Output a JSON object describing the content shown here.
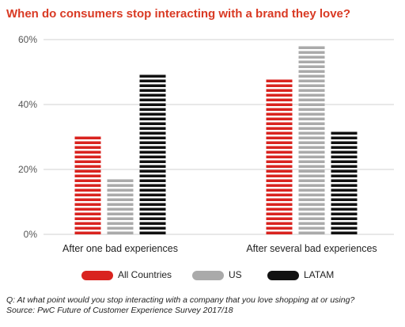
{
  "chart_data": {
    "type": "bar",
    "title": "When do consumers stop interacting with a brand they love?",
    "categories": [
      "After one bad experiences",
      "After several bad experiences"
    ],
    "series": [
      {
        "name": "All Countries",
        "values": [
          30,
          48
        ],
        "color": "#d9231f"
      },
      {
        "name": "US",
        "values": [
          18,
          58
        ],
        "color": "#aaaaaa"
      },
      {
        "name": "LATAM",
        "values": [
          50,
          32
        ],
        "color": "#111111"
      }
    ],
    "yticks": [
      "0%",
      "20%",
      "40%",
      "60%"
    ],
    "ylim": [
      0,
      60
    ],
    "grid": true,
    "legend_position": "bottom"
  },
  "footnote": {
    "question": "Q: At what point would you stop interacting with a company that you love shopping at or using?",
    "source": "Source: PwC Future of Customer Experience Survey 2017/18"
  }
}
